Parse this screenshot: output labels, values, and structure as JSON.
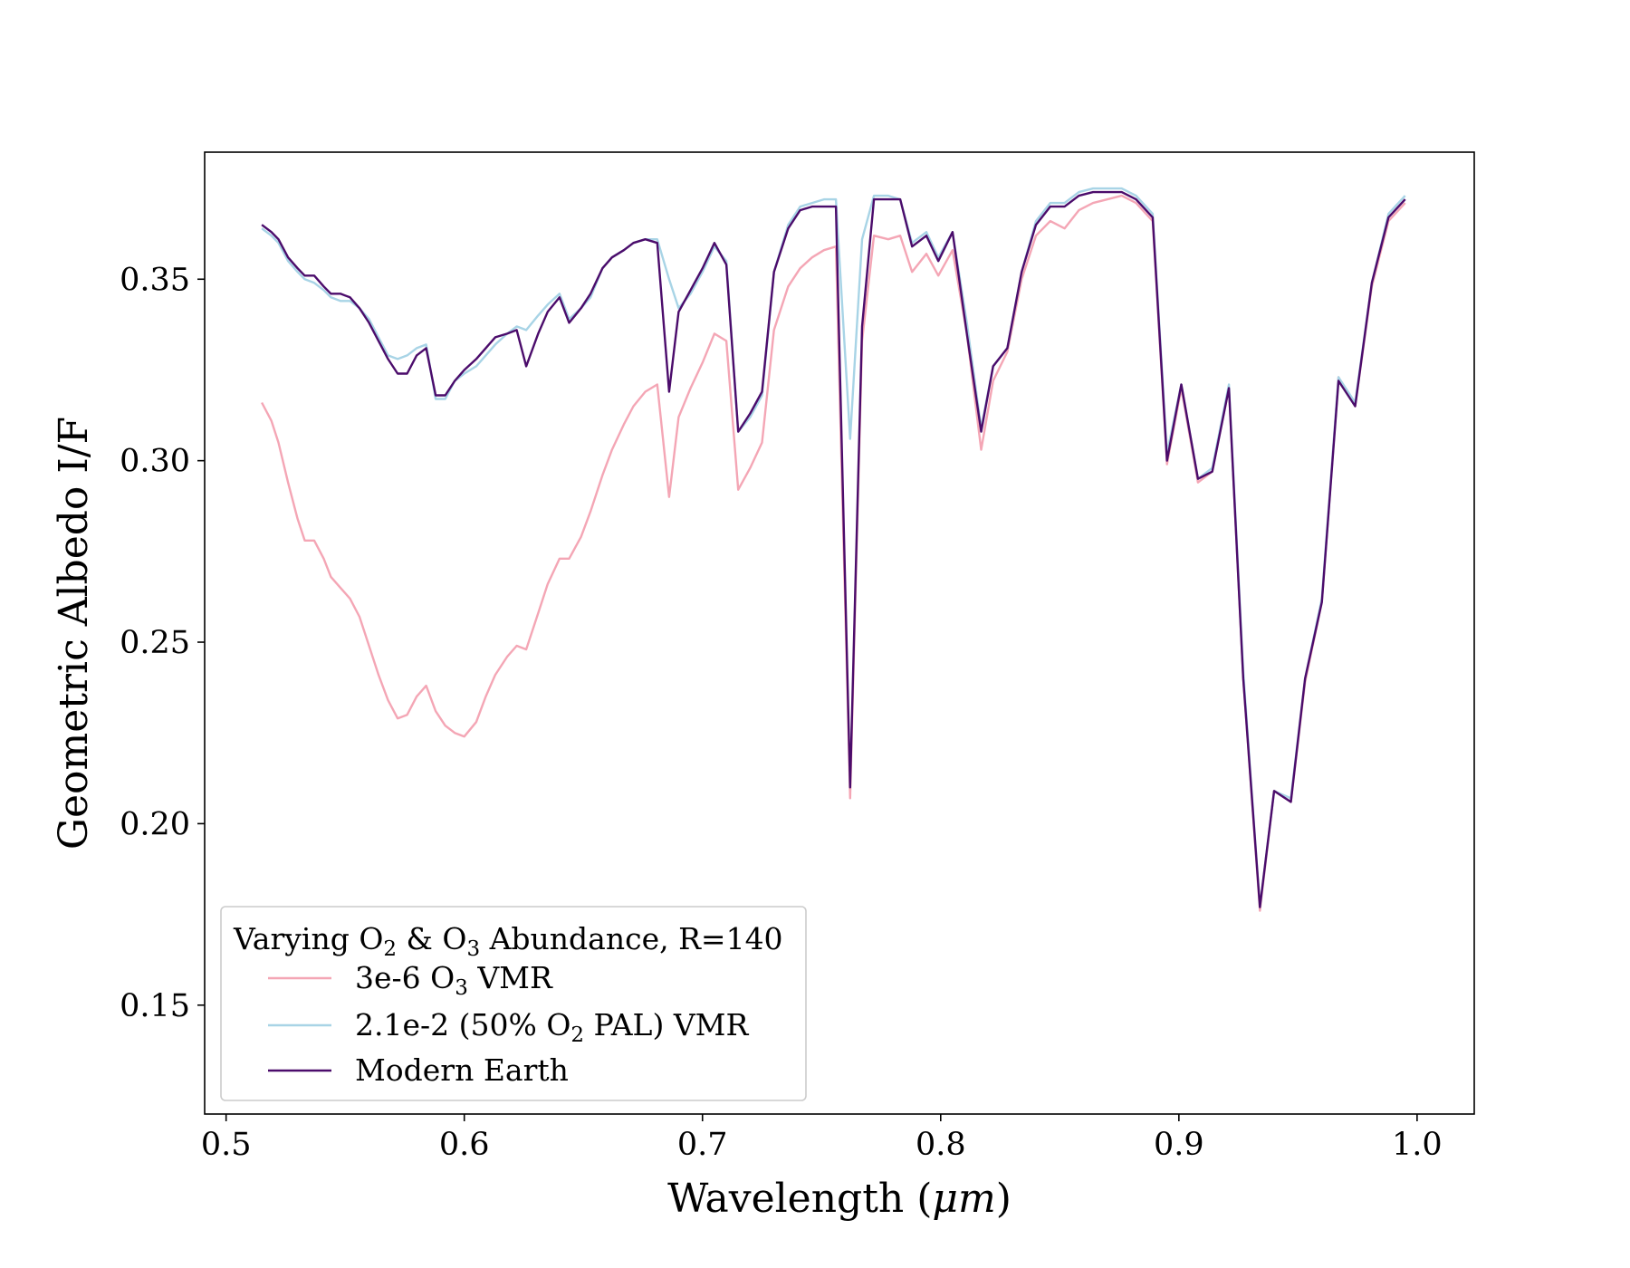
{
  "chart_data": {
    "type": "line",
    "title": "",
    "xlabel": "Wavelength (",
    "xlabel_unit": "μm",
    "xlabel_close": ")",
    "ylabel": "Geometric Albedo I/F",
    "xlim": [
      0.491,
      1.024
    ],
    "ylim": [
      0.12,
      0.385
    ],
    "xticks": [
      0.5,
      0.6,
      0.7,
      0.8,
      0.9,
      1.0
    ],
    "xtick_labels": [
      "0.5",
      "0.6",
      "0.7",
      "0.8",
      "0.9",
      "1.0"
    ],
    "yticks": [
      0.15,
      0.2,
      0.25,
      0.3,
      0.35
    ],
    "ytick_labels": [
      "0.15",
      "0.20",
      "0.25",
      "0.30",
      "0.35"
    ],
    "grid": false,
    "legend": {
      "placement": "lower-left",
      "title_parts": [
        "Varying O",
        "2",
        " & O",
        "3",
        " Abundance, R=140"
      ],
      "entries": [
        {
          "label_parts": [
            "3e-6 O",
            "3",
            " VMR"
          ]
        },
        {
          "label_parts": [
            "2.1e-2 (50% O",
            "2",
            " PAL) VMR"
          ]
        },
        {
          "label_parts": [
            "Modern Earth"
          ]
        }
      ]
    },
    "series": [
      {
        "name": "3e-6 O3 VMR",
        "color": "#f4a6b5",
        "x": [
          0.515,
          0.519,
          0.522,
          0.526,
          0.53,
          0.533,
          0.537,
          0.541,
          0.544,
          0.548,
          0.552,
          0.556,
          0.56,
          0.564,
          0.568,
          0.572,
          0.576,
          0.58,
          0.584,
          0.588,
          0.592,
          0.596,
          0.6,
          0.605,
          0.609,
          0.613,
          0.618,
          0.622,
          0.626,
          0.631,
          0.635,
          0.64,
          0.644,
          0.649,
          0.653,
          0.658,
          0.662,
          0.667,
          0.671,
          0.676,
          0.681,
          0.686,
          0.69,
          0.695,
          0.7,
          0.705,
          0.71,
          0.715,
          0.72,
          0.725,
          0.73,
          0.736,
          0.741,
          0.746,
          0.751,
          0.756,
          0.762,
          0.767,
          0.772,
          0.778,
          0.783,
          0.788,
          0.794,
          0.799,
          0.805,
          0.811,
          0.817,
          0.822,
          0.828,
          0.834,
          0.84,
          0.846,
          0.852,
          0.858,
          0.864,
          0.87,
          0.876,
          0.882,
          0.889,
          0.895,
          0.901,
          0.908,
          0.914,
          0.921,
          0.927,
          0.934,
          0.94,
          0.947,
          0.953,
          0.96,
          0.967,
          0.974,
          0.981,
          0.988,
          0.995
        ],
        "values": [
          0.316,
          0.311,
          0.305,
          0.294,
          0.284,
          0.278,
          0.278,
          0.273,
          0.268,
          0.265,
          0.262,
          0.257,
          0.249,
          0.241,
          0.234,
          0.229,
          0.23,
          0.235,
          0.238,
          0.231,
          0.227,
          0.225,
          0.224,
          0.228,
          0.235,
          0.241,
          0.246,
          0.249,
          0.248,
          0.258,
          0.266,
          0.273,
          0.273,
          0.279,
          0.286,
          0.296,
          0.303,
          0.31,
          0.315,
          0.319,
          0.321,
          0.29,
          0.312,
          0.32,
          0.327,
          0.335,
          0.333,
          0.292,
          0.298,
          0.305,
          0.336,
          0.348,
          0.353,
          0.356,
          0.358,
          0.359,
          0.207,
          0.333,
          0.362,
          0.361,
          0.362,
          0.352,
          0.357,
          0.351,
          0.358,
          0.335,
          0.303,
          0.322,
          0.33,
          0.35,
          0.362,
          0.366,
          0.364,
          0.369,
          0.371,
          0.372,
          0.373,
          0.371,
          0.366,
          0.299,
          0.32,
          0.294,
          0.297,
          0.32,
          0.24,
          0.176,
          0.209,
          0.206,
          0.239,
          0.261,
          0.323,
          0.315,
          0.348,
          0.366,
          0.371
        ]
      },
      {
        "name": "2.1e-2 (50% O2 PAL) VMR",
        "color": "#a8d4e6",
        "x": [
          0.515,
          0.519,
          0.522,
          0.526,
          0.53,
          0.533,
          0.537,
          0.541,
          0.544,
          0.548,
          0.552,
          0.556,
          0.56,
          0.564,
          0.568,
          0.572,
          0.576,
          0.58,
          0.584,
          0.588,
          0.592,
          0.596,
          0.6,
          0.605,
          0.609,
          0.613,
          0.618,
          0.622,
          0.626,
          0.631,
          0.635,
          0.64,
          0.644,
          0.649,
          0.653,
          0.658,
          0.662,
          0.667,
          0.671,
          0.676,
          0.681,
          0.686,
          0.69,
          0.695,
          0.7,
          0.705,
          0.71,
          0.715,
          0.72,
          0.725,
          0.73,
          0.736,
          0.741,
          0.746,
          0.751,
          0.756,
          0.762,
          0.767,
          0.772,
          0.778,
          0.783,
          0.788,
          0.794,
          0.799,
          0.805,
          0.811,
          0.817,
          0.822,
          0.828,
          0.834,
          0.84,
          0.846,
          0.852,
          0.858,
          0.864,
          0.87,
          0.876,
          0.882,
          0.889,
          0.895,
          0.901,
          0.908,
          0.914,
          0.921,
          0.927,
          0.934,
          0.94,
          0.947,
          0.953,
          0.96,
          0.967,
          0.974,
          0.981,
          0.988,
          0.995
        ],
        "values": [
          0.364,
          0.362,
          0.36,
          0.355,
          0.352,
          0.35,
          0.349,
          0.347,
          0.345,
          0.344,
          0.344,
          0.342,
          0.339,
          0.334,
          0.329,
          0.328,
          0.329,
          0.331,
          0.332,
          0.317,
          0.317,
          0.322,
          0.324,
          0.326,
          0.329,
          0.332,
          0.335,
          0.337,
          0.336,
          0.34,
          0.343,
          0.346,
          0.339,
          0.342,
          0.345,
          0.353,
          0.356,
          0.358,
          0.36,
          0.361,
          0.361,
          0.35,
          0.342,
          0.346,
          0.352,
          0.359,
          0.355,
          0.308,
          0.312,
          0.318,
          0.352,
          0.365,
          0.37,
          0.371,
          0.372,
          0.372,
          0.306,
          0.361,
          0.373,
          0.373,
          0.372,
          0.36,
          0.363,
          0.356,
          0.363,
          0.338,
          0.309,
          0.326,
          0.331,
          0.352,
          0.366,
          0.371,
          0.371,
          0.374,
          0.375,
          0.375,
          0.375,
          0.373,
          0.368,
          0.302,
          0.321,
          0.295,
          0.298,
          0.321,
          0.242,
          0.177,
          0.209,
          0.207,
          0.24,
          0.262,
          0.323,
          0.316,
          0.349,
          0.368,
          0.373
        ]
      },
      {
        "name": "Modern Earth",
        "color": "#4b0c6b",
        "x": [
          0.515,
          0.519,
          0.522,
          0.526,
          0.53,
          0.533,
          0.537,
          0.541,
          0.544,
          0.548,
          0.552,
          0.556,
          0.56,
          0.564,
          0.568,
          0.572,
          0.576,
          0.58,
          0.584,
          0.588,
          0.592,
          0.596,
          0.6,
          0.605,
          0.609,
          0.613,
          0.618,
          0.622,
          0.626,
          0.631,
          0.635,
          0.64,
          0.644,
          0.649,
          0.653,
          0.658,
          0.662,
          0.667,
          0.671,
          0.676,
          0.681,
          0.686,
          0.69,
          0.695,
          0.7,
          0.705,
          0.71,
          0.715,
          0.72,
          0.725,
          0.73,
          0.736,
          0.741,
          0.746,
          0.751,
          0.756,
          0.762,
          0.767,
          0.772,
          0.778,
          0.783,
          0.788,
          0.794,
          0.799,
          0.805,
          0.811,
          0.817,
          0.822,
          0.828,
          0.834,
          0.84,
          0.846,
          0.852,
          0.858,
          0.864,
          0.87,
          0.876,
          0.882,
          0.889,
          0.895,
          0.901,
          0.908,
          0.914,
          0.921,
          0.927,
          0.934,
          0.94,
          0.947,
          0.953,
          0.96,
          0.967,
          0.974,
          0.981,
          0.988,
          0.995
        ],
        "values": [
          0.365,
          0.363,
          0.361,
          0.356,
          0.353,
          0.351,
          0.351,
          0.348,
          0.346,
          0.346,
          0.345,
          0.342,
          0.338,
          0.333,
          0.328,
          0.324,
          0.324,
          0.329,
          0.331,
          0.318,
          0.318,
          0.322,
          0.325,
          0.328,
          0.331,
          0.334,
          0.335,
          0.336,
          0.326,
          0.335,
          0.341,
          0.345,
          0.338,
          0.342,
          0.346,
          0.353,
          0.356,
          0.358,
          0.36,
          0.361,
          0.36,
          0.319,
          0.341,
          0.347,
          0.353,
          0.36,
          0.354,
          0.308,
          0.313,
          0.319,
          0.352,
          0.364,
          0.369,
          0.37,
          0.37,
          0.37,
          0.21,
          0.337,
          0.372,
          0.372,
          0.372,
          0.359,
          0.362,
          0.355,
          0.363,
          0.335,
          0.308,
          0.326,
          0.331,
          0.352,
          0.365,
          0.37,
          0.37,
          0.373,
          0.374,
          0.374,
          0.374,
          0.372,
          0.367,
          0.3,
          0.321,
          0.295,
          0.297,
          0.32,
          0.24,
          0.177,
          0.209,
          0.206,
          0.24,
          0.261,
          0.322,
          0.315,
          0.349,
          0.367,
          0.372
        ]
      }
    ]
  }
}
